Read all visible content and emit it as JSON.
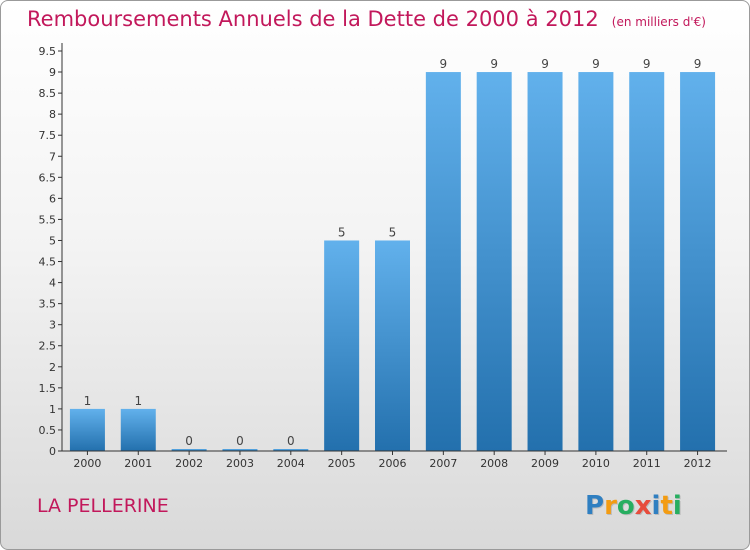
{
  "header": {
    "title": "Remboursements Annuels de la Dette de 2000 à 2012",
    "subtitle": "(en milliers d'€)"
  },
  "footer": {
    "commune": "LA PELLERINE",
    "logo_text": "Proxiti"
  },
  "colors": {
    "title": "#c2185b",
    "bar_light": "#62b1ec",
    "bar_dark": "#2370ad",
    "axis": "#333333"
  },
  "logo_letters": [
    {
      "char": "P",
      "color": "#2f7fc1"
    },
    {
      "char": "r",
      "color": "#f39c12"
    },
    {
      "char": "o",
      "color": "#27ae60"
    },
    {
      "char": "x",
      "color": "#e74c3c"
    },
    {
      "char": "i",
      "color": "#2f7fc1"
    },
    {
      "char": "t",
      "color": "#f39c12"
    },
    {
      "char": "i",
      "color": "#27ae60"
    }
  ],
  "chart_data": {
    "type": "bar",
    "title": "Remboursements Annuels de la Dette de 2000 à 2012",
    "xlabel": "",
    "ylabel": "",
    "categories": [
      "2000",
      "2001",
      "2002",
      "2003",
      "2004",
      "2005",
      "2006",
      "2007",
      "2008",
      "2009",
      "2010",
      "2011",
      "2012"
    ],
    "values": [
      1,
      1,
      0,
      0,
      0,
      5,
      5,
      9,
      9,
      9,
      9,
      9,
      9
    ],
    "value_labels": [
      "1",
      "1",
      "0",
      "0",
      "0",
      "5",
      "5",
      "9",
      "9",
      "9",
      "9",
      "9",
      "9"
    ],
    "ylim": [
      0,
      9.5
    ],
    "yticks": [
      "0",
      "0.5",
      "1",
      "1.5",
      "2",
      "2.5",
      "3",
      "3.5",
      "4",
      "4.5",
      "5",
      "5.5",
      "6",
      "6.5",
      "7",
      "7.5",
      "8",
      "8.5",
      "9",
      "9.5"
    ],
    "grid": false,
    "legend": "none"
  }
}
